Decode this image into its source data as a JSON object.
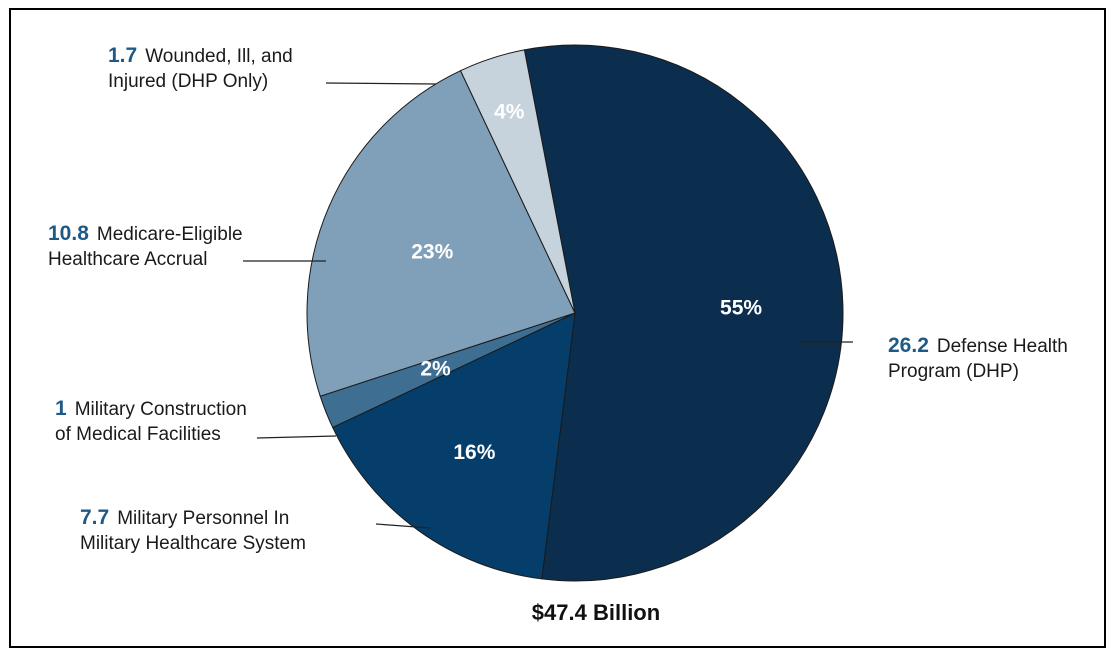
{
  "chart_data": {
    "type": "pie",
    "total_label": "$47.4 Billion",
    "slices": [
      {
        "value": "26.2",
        "label_lines": [
          "Defense Health",
          "Program (DHP)"
        ],
        "percent": "55%",
        "share": 0.55,
        "color": "#0b2e4f"
      },
      {
        "value": "7.7",
        "label_lines": [
          "Military Personnel In",
          "Military Healthcare System"
        ],
        "percent": "16%",
        "share": 0.16,
        "color": "#053e6b"
      },
      {
        "value": "1",
        "label_lines": [
          "Military Construction",
          "of Medical Facilities"
        ],
        "percent": "2%",
        "share": 0.02,
        "color": "#3f6e93"
      },
      {
        "value": "10.8",
        "label_lines": [
          "Medicare-Eligible",
          "Healthcare Accrual"
        ],
        "percent": "23%",
        "share": 0.23,
        "color": "#80a0b9"
      },
      {
        "value": "1.7",
        "label_lines": [
          "Wounded, Ill, and",
          "Injured (DHP Only)"
        ],
        "percent": "4%",
        "share": 0.04,
        "color": "#c6d2dc"
      }
    ]
  }
}
